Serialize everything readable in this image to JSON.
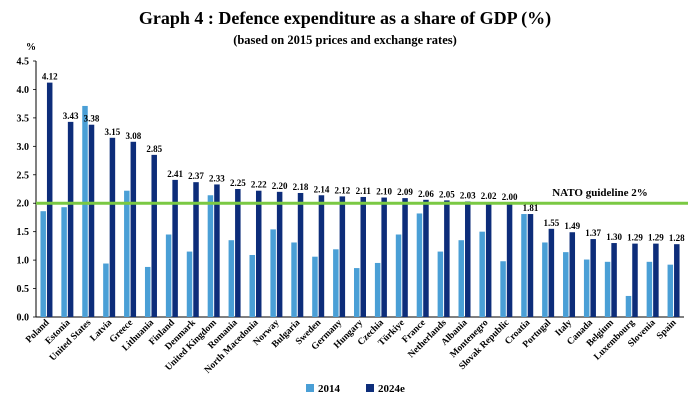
{
  "chart_data": {
    "type": "bar",
    "title": "Graph 4 : Defence expenditure as a share of GDP (%)",
    "subtitle": "(based on 2015 prices and exchange rates)",
    "ylabel": "%",
    "xlabel": "",
    "ylim": [
      0,
      4.5
    ],
    "yticks": [
      "0.0",
      "0.5",
      "1.0",
      "1.5",
      "2.0",
      "2.5",
      "3.0",
      "3.5",
      "4.0",
      "4.5"
    ],
    "categories": [
      "Poland",
      "Estonia",
      "United States",
      "Latvia",
      "Greece",
      "Lithuania",
      "Finland",
      "Denmark",
      "United Kingdom",
      "Romania",
      "North Macedonia",
      "Norway",
      "Bulgaria",
      "Sweden",
      "Germany",
      "Hungary",
      "Czechia",
      "Türkiye",
      "France",
      "Netherlands",
      "Albania",
      "Montenegro",
      "Slovak Republic",
      "Croatia",
      "Portugal",
      "Italy",
      "Canada",
      "Belgium",
      "Luxembourg",
      "Slovenia",
      "Spain"
    ],
    "series": [
      {
        "name": "2014",
        "color": "#4a9fd6",
        "values": [
          1.86,
          1.93,
          3.71,
          0.94,
          2.22,
          0.88,
          1.45,
          1.15,
          2.14,
          1.35,
          1.09,
          1.54,
          1.31,
          1.06,
          1.19,
          0.86,
          0.95,
          1.45,
          1.82,
          1.15,
          1.35,
          1.5,
          0.98,
          1.81,
          1.31,
          1.14,
          1.01,
          0.97,
          0.37,
          0.97,
          0.92
        ]
      },
      {
        "name": "2024e",
        "color": "#0d2d7a",
        "values": [
          4.12,
          3.43,
          3.38,
          3.15,
          3.08,
          2.85,
          2.41,
          2.37,
          2.33,
          2.25,
          2.22,
          2.2,
          2.18,
          2.14,
          2.12,
          2.11,
          2.1,
          2.09,
          2.06,
          2.05,
          2.03,
          2.02,
          2.0,
          1.81,
          1.55,
          1.49,
          1.37,
          1.3,
          1.29,
          1.29,
          1.28
        ],
        "labels": [
          "4.12",
          "3.43",
          "3.38",
          "3.15",
          "3.08",
          "2.85",
          "2.41",
          "2.37",
          "2.33",
          "2.25",
          "2.22",
          "2.20",
          "2.18",
          "2.14",
          "2.12",
          "2.11",
          "2.10",
          "2.09",
          "2.06",
          "2.05",
          "2.03",
          "2.02",
          "2.00",
          "1.81",
          "1.55",
          "1.49",
          "1.37",
          "1.30",
          "1.29",
          "1.29",
          "1.28"
        ]
      }
    ],
    "reference_line": {
      "label": "NATO guideline 2%",
      "value": 2.0,
      "color": "#7ac943"
    },
    "gridlines": false,
    "legend_position": "bottom-center"
  }
}
